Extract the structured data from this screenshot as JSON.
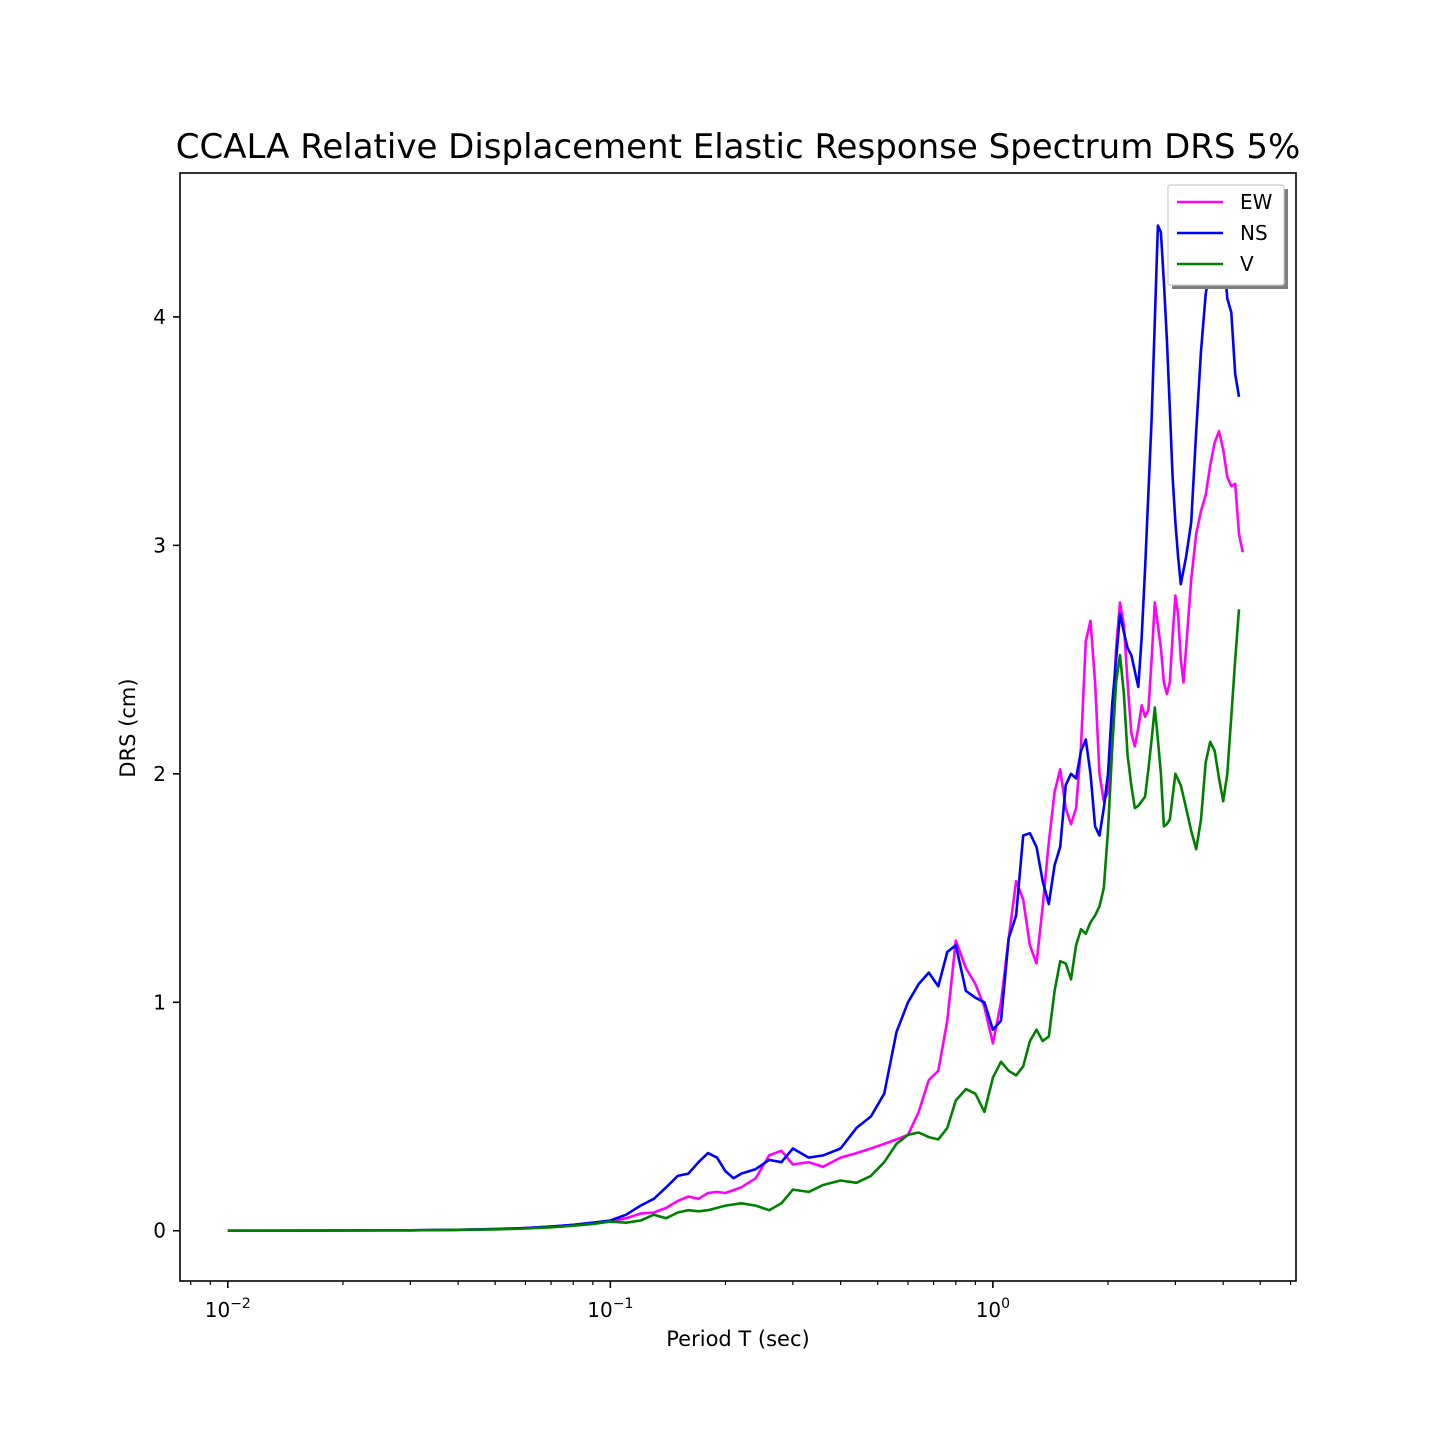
{
  "chart_data": {
    "type": "line",
    "title": "CCALA Relative Displacement Elastic Response Spectrum DRS 5%",
    "xlabel": "Period T (sec)",
    "ylabel": "DRS (cm)",
    "xscale": "log",
    "xlim": [
      0.0075,
      6.2
    ],
    "ylim": [
      -0.22,
      4.63
    ],
    "x_ticks": [
      {
        "value": 0.01,
        "base": "10",
        "exp": "−2"
      },
      {
        "value": 0.1,
        "base": "10",
        "exp": "−1"
      },
      {
        "value": 1,
        "base": "10",
        "exp": "0"
      }
    ],
    "y_ticks": [
      0,
      1,
      2,
      3,
      4
    ],
    "grid": false,
    "legend_position": "top-right",
    "series": [
      {
        "name": "EW",
        "color": "#ff00ff",
        "points": [
          [
            0.01,
            0
          ],
          [
            0.02,
            0.001
          ],
          [
            0.03,
            0.002
          ],
          [
            0.04,
            0.004
          ],
          [
            0.05,
            0.007
          ],
          [
            0.06,
            0.012
          ],
          [
            0.07,
            0.018
          ],
          [
            0.08,
            0.025
          ],
          [
            0.09,
            0.033
          ],
          [
            0.1,
            0.04
          ],
          [
            0.11,
            0.055
          ],
          [
            0.12,
            0.075
          ],
          [
            0.13,
            0.08
          ],
          [
            0.14,
            0.1
          ],
          [
            0.15,
            0.13
          ],
          [
            0.16,
            0.15
          ],
          [
            0.17,
            0.14
          ],
          [
            0.18,
            0.165
          ],
          [
            0.19,
            0.17
          ],
          [
            0.2,
            0.165
          ],
          [
            0.22,
            0.19
          ],
          [
            0.24,
            0.23
          ],
          [
            0.26,
            0.33
          ],
          [
            0.28,
            0.35
          ],
          [
            0.3,
            0.29
          ],
          [
            0.33,
            0.3
          ],
          [
            0.36,
            0.28
          ],
          [
            0.4,
            0.32
          ],
          [
            0.44,
            0.34
          ],
          [
            0.48,
            0.36
          ],
          [
            0.52,
            0.38
          ],
          [
            0.56,
            0.4
          ],
          [
            0.6,
            0.42
          ],
          [
            0.64,
            0.52
          ],
          [
            0.68,
            0.66
          ],
          [
            0.72,
            0.7
          ],
          [
            0.76,
            0.92
          ],
          [
            0.8,
            1.27
          ],
          [
            0.85,
            1.15
          ],
          [
            0.9,
            1.08
          ],
          [
            0.95,
            0.98
          ],
          [
            1.0,
            0.82
          ],
          [
            1.05,
            1.0
          ],
          [
            1.1,
            1.28
          ],
          [
            1.15,
            1.53
          ],
          [
            1.2,
            1.45
          ],
          [
            1.25,
            1.25
          ],
          [
            1.3,
            1.17
          ],
          [
            1.35,
            1.42
          ],
          [
            1.4,
            1.7
          ],
          [
            1.45,
            1.92
          ],
          [
            1.5,
            2.02
          ],
          [
            1.55,
            1.85
          ],
          [
            1.6,
            1.78
          ],
          [
            1.65,
            1.85
          ],
          [
            1.7,
            2.12
          ],
          [
            1.75,
            2.58
          ],
          [
            1.8,
            2.67
          ],
          [
            1.85,
            2.4
          ],
          [
            1.9,
            2.0
          ],
          [
            1.95,
            1.88
          ],
          [
            2.0,
            1.92
          ],
          [
            2.05,
            2.2
          ],
          [
            2.1,
            2.55
          ],
          [
            2.15,
            2.75
          ],
          [
            2.2,
            2.65
          ],
          [
            2.25,
            2.4
          ],
          [
            2.3,
            2.18
          ],
          [
            2.35,
            2.12
          ],
          [
            2.4,
            2.2
          ],
          [
            2.45,
            2.3
          ],
          [
            2.5,
            2.25
          ],
          [
            2.55,
            2.28
          ],
          [
            2.6,
            2.5
          ],
          [
            2.65,
            2.75
          ],
          [
            2.7,
            2.65
          ],
          [
            2.75,
            2.55
          ],
          [
            2.8,
            2.4
          ],
          [
            2.85,
            2.35
          ],
          [
            2.9,
            2.4
          ],
          [
            2.95,
            2.6
          ],
          [
            3.0,
            2.78
          ],
          [
            3.05,
            2.7
          ],
          [
            3.1,
            2.5
          ],
          [
            3.15,
            2.4
          ],
          [
            3.2,
            2.55
          ],
          [
            3.3,
            2.85
          ],
          [
            3.4,
            3.05
          ],
          [
            3.5,
            3.15
          ],
          [
            3.6,
            3.22
          ],
          [
            3.7,
            3.35
          ],
          [
            3.8,
            3.45
          ],
          [
            3.9,
            3.5
          ],
          [
            4.0,
            3.42
          ],
          [
            4.1,
            3.3
          ],
          [
            4.2,
            3.26
          ],
          [
            4.3,
            3.27
          ],
          [
            4.4,
            3.05
          ],
          [
            4.5,
            2.97
          ]
        ]
      },
      {
        "name": "NS",
        "color": "#0000ff",
        "points": [
          [
            0.01,
            0
          ],
          [
            0.02,
            0.001
          ],
          [
            0.03,
            0.002
          ],
          [
            0.04,
            0.004
          ],
          [
            0.05,
            0.007
          ],
          [
            0.06,
            0.012
          ],
          [
            0.07,
            0.018
          ],
          [
            0.08,
            0.026
          ],
          [
            0.09,
            0.035
          ],
          [
            0.1,
            0.045
          ],
          [
            0.11,
            0.07
          ],
          [
            0.12,
            0.11
          ],
          [
            0.13,
            0.14
          ],
          [
            0.14,
            0.19
          ],
          [
            0.15,
            0.24
          ],
          [
            0.16,
            0.25
          ],
          [
            0.17,
            0.3
          ],
          [
            0.18,
            0.34
          ],
          [
            0.19,
            0.32
          ],
          [
            0.2,
            0.26
          ],
          [
            0.21,
            0.23
          ],
          [
            0.22,
            0.25
          ],
          [
            0.24,
            0.27
          ],
          [
            0.26,
            0.31
          ],
          [
            0.28,
            0.3
          ],
          [
            0.3,
            0.36
          ],
          [
            0.33,
            0.32
          ],
          [
            0.36,
            0.33
          ],
          [
            0.4,
            0.36
          ],
          [
            0.44,
            0.45
          ],
          [
            0.48,
            0.5
          ],
          [
            0.52,
            0.6
          ],
          [
            0.56,
            0.87
          ],
          [
            0.6,
            1.0
          ],
          [
            0.64,
            1.08
          ],
          [
            0.68,
            1.13
          ],
          [
            0.72,
            1.07
          ],
          [
            0.76,
            1.22
          ],
          [
            0.8,
            1.25
          ],
          [
            0.85,
            1.05
          ],
          [
            0.9,
            1.02
          ],
          [
            0.95,
            1.0
          ],
          [
            1.0,
            0.88
          ],
          [
            1.05,
            0.92
          ],
          [
            1.1,
            1.28
          ],
          [
            1.15,
            1.38
          ],
          [
            1.2,
            1.73
          ],
          [
            1.25,
            1.74
          ],
          [
            1.3,
            1.68
          ],
          [
            1.35,
            1.53
          ],
          [
            1.4,
            1.43
          ],
          [
            1.45,
            1.6
          ],
          [
            1.5,
            1.68
          ],
          [
            1.55,
            1.95
          ],
          [
            1.6,
            2.0
          ],
          [
            1.65,
            1.98
          ],
          [
            1.7,
            2.1
          ],
          [
            1.75,
            2.15
          ],
          [
            1.8,
            2.0
          ],
          [
            1.85,
            1.77
          ],
          [
            1.9,
            1.73
          ],
          [
            1.95,
            1.85
          ],
          [
            2.0,
            2.0
          ],
          [
            2.05,
            2.3
          ],
          [
            2.1,
            2.5
          ],
          [
            2.15,
            2.7
          ],
          [
            2.2,
            2.62
          ],
          [
            2.25,
            2.55
          ],
          [
            2.3,
            2.52
          ],
          [
            2.35,
            2.45
          ],
          [
            2.4,
            2.38
          ],
          [
            2.45,
            2.6
          ],
          [
            2.5,
            2.9
          ],
          [
            2.6,
            3.55
          ],
          [
            2.7,
            4.4
          ],
          [
            2.75,
            4.37
          ],
          [
            2.8,
            4.15
          ],
          [
            2.85,
            3.9
          ],
          [
            2.9,
            3.6
          ],
          [
            2.95,
            3.3
          ],
          [
            3.0,
            3.1
          ],
          [
            3.05,
            2.95
          ],
          [
            3.1,
            2.83
          ],
          [
            3.2,
            2.95
          ],
          [
            3.3,
            3.1
          ],
          [
            3.4,
            3.5
          ],
          [
            3.5,
            3.85
          ],
          [
            3.6,
            4.1
          ],
          [
            3.7,
            4.22
          ],
          [
            3.8,
            4.28
          ],
          [
            3.9,
            4.32
          ],
          [
            4.0,
            4.3
          ],
          [
            4.1,
            4.08
          ],
          [
            4.2,
            4.02
          ],
          [
            4.3,
            3.75
          ],
          [
            4.4,
            3.65
          ]
        ]
      },
      {
        "name": "V",
        "color": "#008000",
        "points": [
          [
            0.01,
            0
          ],
          [
            0.02,
            0.001
          ],
          [
            0.03,
            0.002
          ],
          [
            0.04,
            0.004
          ],
          [
            0.05,
            0.006
          ],
          [
            0.06,
            0.01
          ],
          [
            0.07,
            0.015
          ],
          [
            0.08,
            0.022
          ],
          [
            0.09,
            0.03
          ],
          [
            0.1,
            0.04
          ],
          [
            0.11,
            0.035
          ],
          [
            0.12,
            0.045
          ],
          [
            0.13,
            0.07
          ],
          [
            0.14,
            0.055
          ],
          [
            0.15,
            0.08
          ],
          [
            0.16,
            0.09
          ],
          [
            0.17,
            0.085
          ],
          [
            0.18,
            0.09
          ],
          [
            0.19,
            0.1
          ],
          [
            0.2,
            0.11
          ],
          [
            0.22,
            0.12
          ],
          [
            0.24,
            0.11
          ],
          [
            0.26,
            0.09
          ],
          [
            0.28,
            0.12
          ],
          [
            0.3,
            0.18
          ],
          [
            0.33,
            0.17
          ],
          [
            0.36,
            0.2
          ],
          [
            0.4,
            0.22
          ],
          [
            0.44,
            0.21
          ],
          [
            0.48,
            0.24
          ],
          [
            0.52,
            0.3
          ],
          [
            0.56,
            0.38
          ],
          [
            0.6,
            0.42
          ],
          [
            0.64,
            0.43
          ],
          [
            0.68,
            0.41
          ],
          [
            0.72,
            0.4
          ],
          [
            0.76,
            0.45
          ],
          [
            0.8,
            0.57
          ],
          [
            0.85,
            0.62
          ],
          [
            0.9,
            0.6
          ],
          [
            0.95,
            0.52
          ],
          [
            1.0,
            0.67
          ],
          [
            1.05,
            0.74
          ],
          [
            1.1,
            0.7
          ],
          [
            1.15,
            0.68
          ],
          [
            1.2,
            0.72
          ],
          [
            1.25,
            0.83
          ],
          [
            1.3,
            0.88
          ],
          [
            1.35,
            0.83
          ],
          [
            1.4,
            0.85
          ],
          [
            1.45,
            1.05
          ],
          [
            1.5,
            1.18
          ],
          [
            1.55,
            1.17
          ],
          [
            1.6,
            1.1
          ],
          [
            1.65,
            1.25
          ],
          [
            1.7,
            1.32
          ],
          [
            1.75,
            1.3
          ],
          [
            1.8,
            1.35
          ],
          [
            1.85,
            1.38
          ],
          [
            1.9,
            1.42
          ],
          [
            1.95,
            1.5
          ],
          [
            2.0,
            1.75
          ],
          [
            2.05,
            2.1
          ],
          [
            2.1,
            2.4
          ],
          [
            2.15,
            2.52
          ],
          [
            2.2,
            2.35
          ],
          [
            2.25,
            2.08
          ],
          [
            2.3,
            1.95
          ],
          [
            2.35,
            1.85
          ],
          [
            2.4,
            1.86
          ],
          [
            2.45,
            1.88
          ],
          [
            2.5,
            1.9
          ],
          [
            2.55,
            2.02
          ],
          [
            2.6,
            2.15
          ],
          [
            2.65,
            2.29
          ],
          [
            2.7,
            2.15
          ],
          [
            2.75,
            2.0
          ],
          [
            2.8,
            1.77
          ],
          [
            2.85,
            1.78
          ],
          [
            2.9,
            1.8
          ],
          [
            3.0,
            2.0
          ],
          [
            3.1,
            1.95
          ],
          [
            3.2,
            1.85
          ],
          [
            3.3,
            1.75
          ],
          [
            3.4,
            1.67
          ],
          [
            3.5,
            1.8
          ],
          [
            3.6,
            2.05
          ],
          [
            3.7,
            2.14
          ],
          [
            3.8,
            2.1
          ],
          [
            3.9,
            1.98
          ],
          [
            4.0,
            1.88
          ],
          [
            4.1,
            2.0
          ],
          [
            4.2,
            2.25
          ],
          [
            4.3,
            2.5
          ],
          [
            4.4,
            2.72
          ]
        ]
      }
    ]
  }
}
